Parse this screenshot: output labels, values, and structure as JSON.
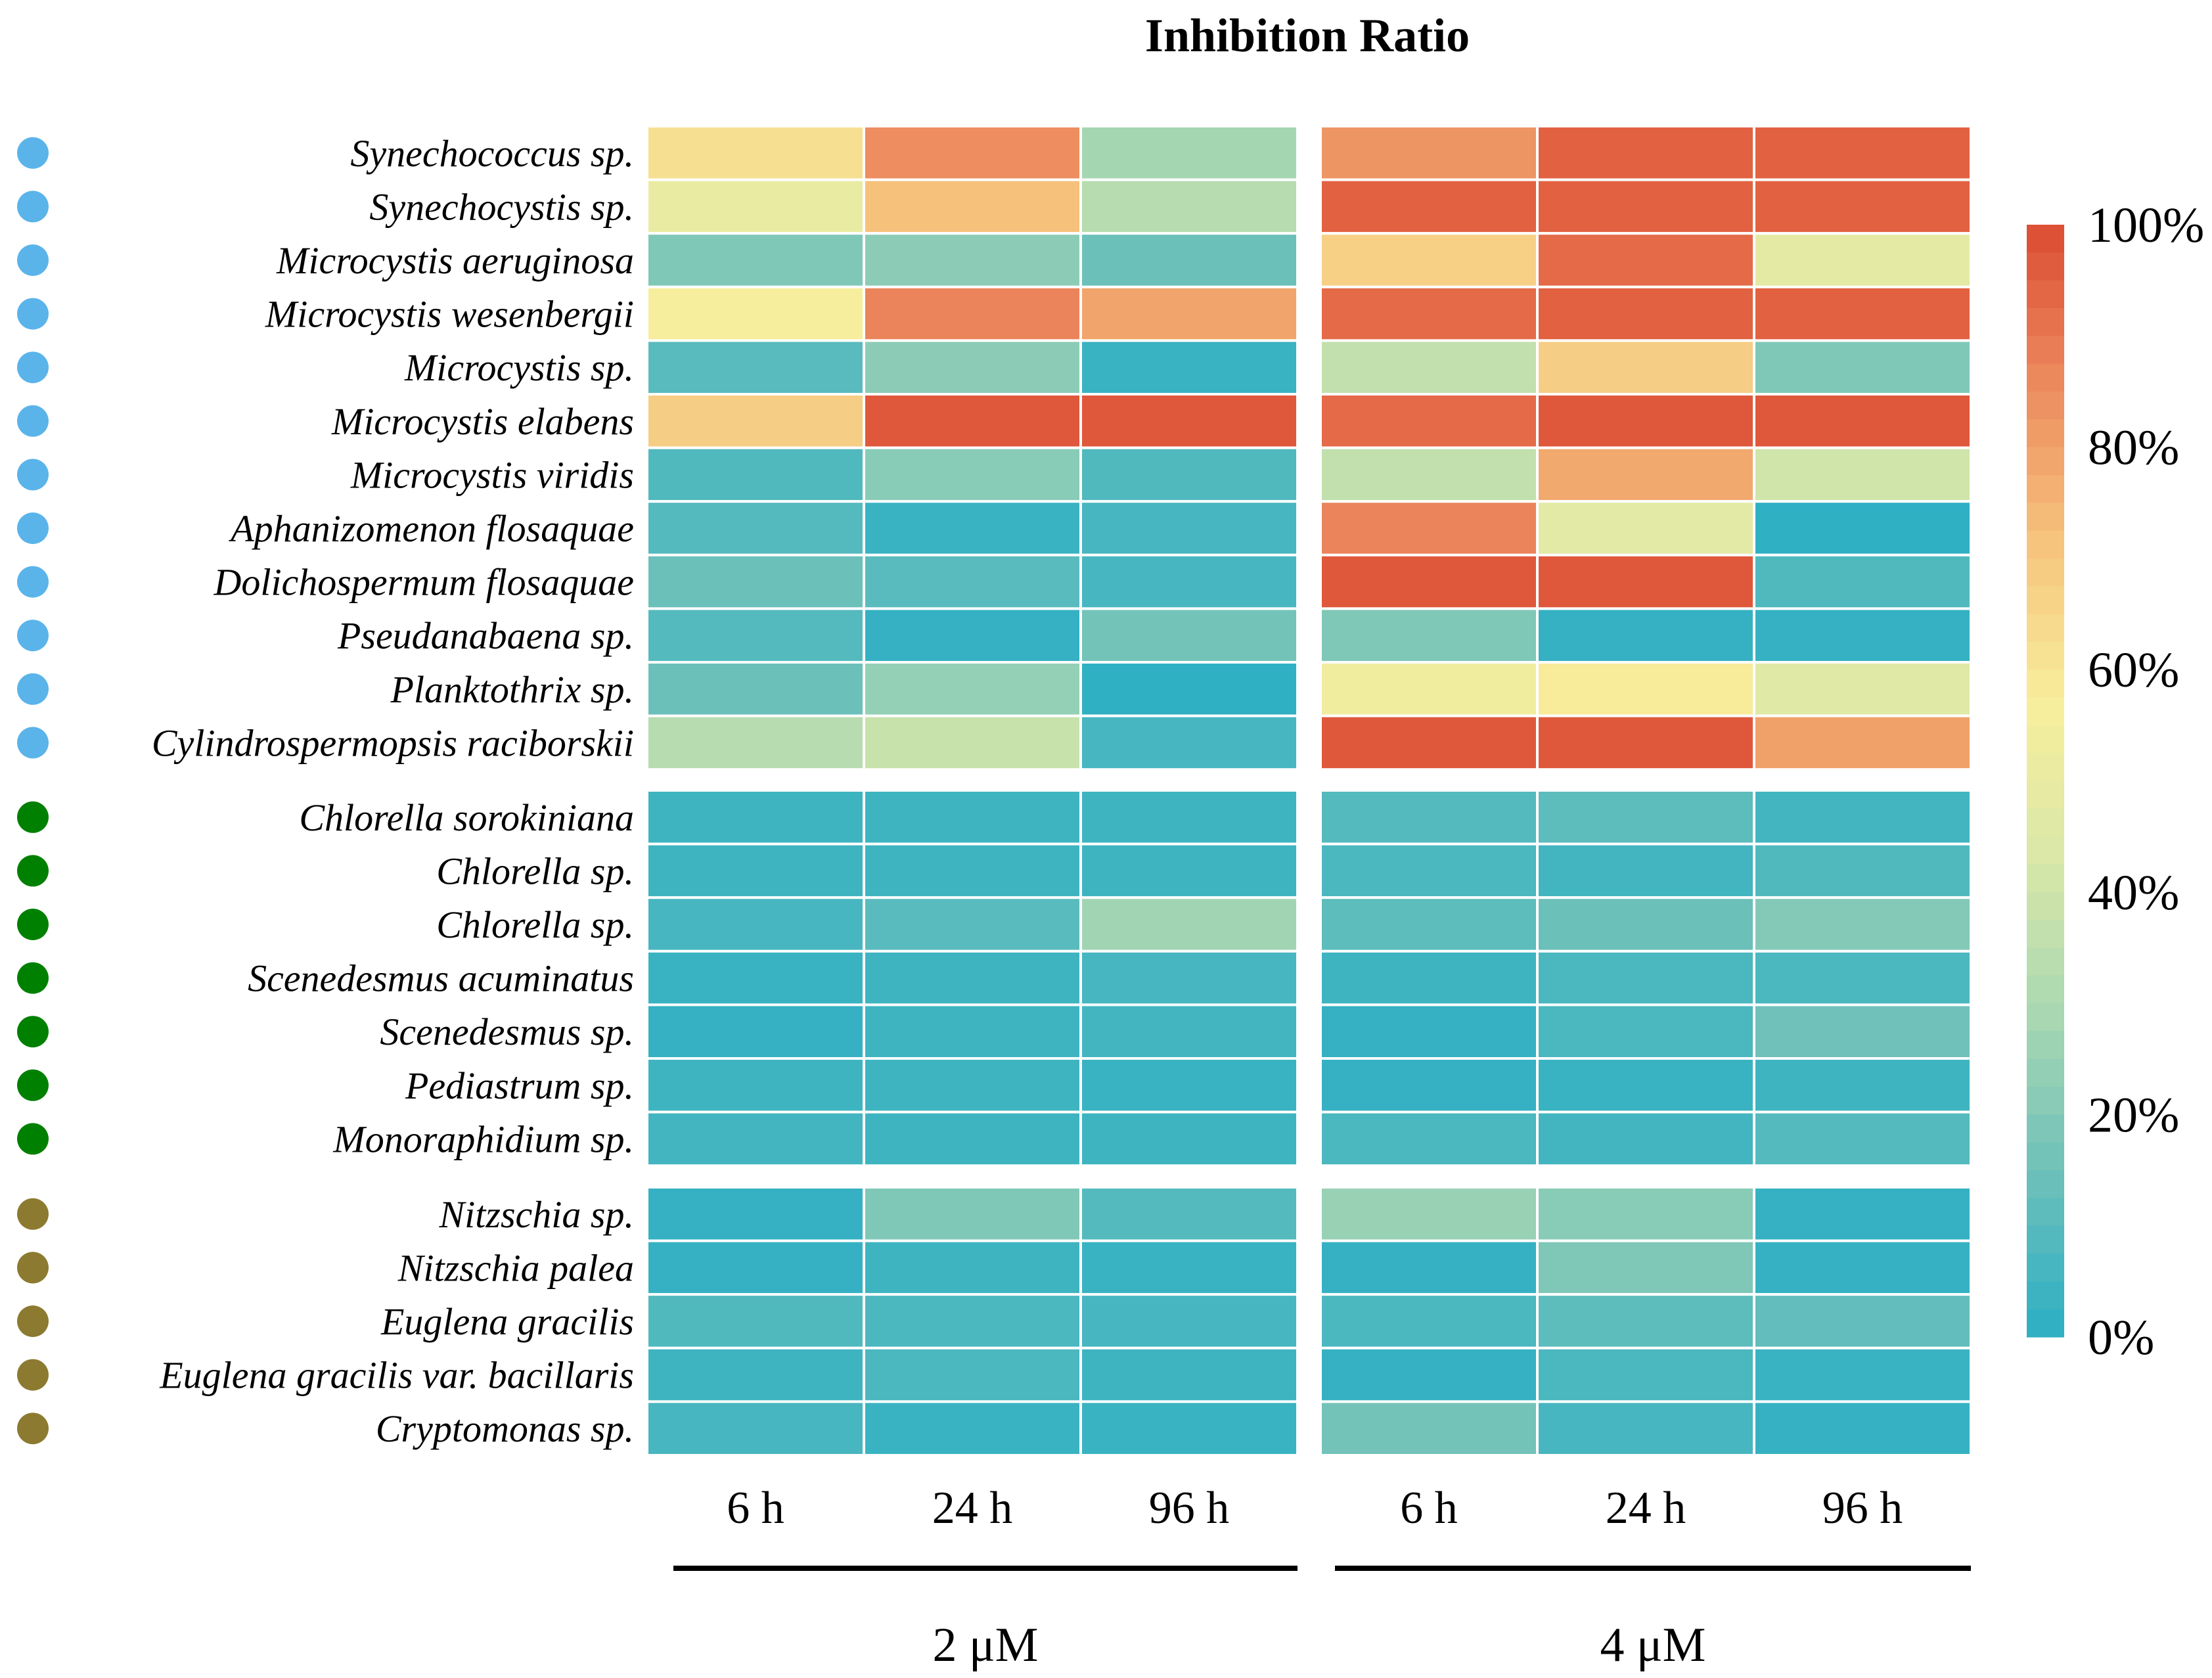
{
  "chart_data": {
    "type": "heatmap",
    "title": "Inhibition Ratio",
    "concentrations": [
      "2 μM",
      "4 μM"
    ],
    "time_points": [
      "6 h",
      "24 h",
      "96 h"
    ],
    "column_labels": [
      "6 h",
      "24 h",
      "96 h",
      "6 h",
      "24 h",
      "96 h"
    ],
    "groups": [
      {
        "color": "#5ab4ea",
        "rows": [
          {
            "name": "Synechococcus sp.",
            "values": [
              62,
              85,
              28,
              83,
              95,
              95
            ]
          },
          {
            "name": "Synechocystis sp.",
            "values": [
              50,
              72,
              33,
              95,
              95,
              95
            ]
          },
          {
            "name": "Microcystis aeruginosa",
            "values": [
              19,
              22,
              14,
              67,
              93,
              48
            ]
          },
          {
            "name": "Microcystis wesenbergii",
            "values": [
              56,
              87,
              79,
              93,
              95,
              95
            ]
          },
          {
            "name": "Microcystis sp.",
            "values": [
              10,
              22,
              3,
              36,
              68,
              19
            ]
          },
          {
            "name": "Microcystis elabens",
            "values": [
              68,
              97,
              97,
              93,
              97,
              97
            ]
          },
          {
            "name": "Microcystis viridis",
            "values": [
              8,
              21,
              8,
              36,
              78,
              40
            ]
          },
          {
            "name": "Aphanizomenon flosaquae",
            "values": [
              9,
              3,
              6,
              87,
              47,
              1
            ]
          },
          {
            "name": "Dolichospermum flosaquae",
            "values": [
              14,
              10,
              6,
              97,
              97,
              8
            ]
          },
          {
            "name": "Pseudanabaena sp.",
            "values": [
              9,
              2,
              16,
              19,
              2,
              2
            ]
          },
          {
            "name": "Planktothrix sp.",
            "values": [
              14,
              24,
              1,
              54,
              58,
              46
            ]
          },
          {
            "name": "Cylindrospermopsis raciborskii",
            "values": [
              33,
              38,
              6,
              97,
              97,
              80
            ]
          }
        ]
      },
      {
        "color": "#008000",
        "rows": [
          {
            "name": "Chlorella sorokiniana",
            "values": [
              4,
              4,
              4,
              9,
              11,
              5
            ]
          },
          {
            "name": "Chlorella sp.",
            "values": [
              4,
              4,
              4,
              7,
              5,
              8
            ]
          },
          {
            "name": "Chlorella sp.",
            "values": [
              6,
              10,
              27,
              11,
              14,
              20
            ]
          },
          {
            "name": "Scenedesmus acuminatus",
            "values": [
              3,
              4,
              6,
              4,
              7,
              7
            ]
          },
          {
            "name": "Scenedesmus sp.",
            "values": [
              2,
              4,
              5,
              2,
              7,
              15
            ]
          },
          {
            "name": "Pediastrum sp.",
            "values": [
              4,
              4,
              3,
              2,
              3,
              4
            ]
          },
          {
            "name": "Monoraphidium sp.",
            "values": [
              5,
              4,
              4,
              7,
              5,
              9
            ]
          }
        ]
      },
      {
        "color": "#8c7a30",
        "rows": [
          {
            "name": "Nitzschia sp.",
            "values": [
              2,
              19,
              9,
              25,
              21,
              2
            ]
          },
          {
            "name": "Nitzschia palea",
            "values": [
              2,
              4,
              3,
              2,
              19,
              2
            ]
          },
          {
            "name": "Euglena gracilis",
            "values": [
              8,
              7,
              6,
              7,
              11,
              12
            ]
          },
          {
            "name": "Euglena gracilis var. bacillaris",
            "values": [
              4,
              7,
              4,
              2,
              7,
              3
            ]
          },
          {
            "name": "Cryptomonas sp.",
            "values": [
              6,
              3,
              3,
              16,
              6,
              2
            ]
          }
        ]
      }
    ],
    "color_scale": {
      "min": 0,
      "max": 100,
      "stops": [
        "#2cafc4",
        "#6cc0ba",
        "#a7d7b2",
        "#d9e8a8",
        "#f8ee9c",
        "#f6c37c",
        "#ec8a5e",
        "#dc4b32"
      ],
      "ticks": [
        "0%",
        "20%",
        "40%",
        "60%",
        "80%",
        "100%"
      ]
    }
  }
}
